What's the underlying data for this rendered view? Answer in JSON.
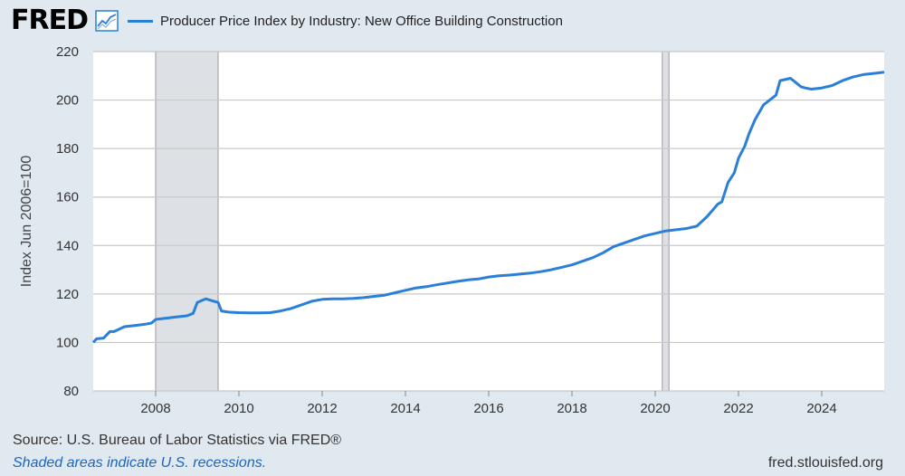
{
  "header": {
    "logo_text": "FRED",
    "logo_icon": "line-graph-icon",
    "legend_label": "Producer Price Index by Industry: New Office Building Construction"
  },
  "colors": {
    "series": "#2a7fd8",
    "recession": "#dde1e6",
    "grid": "#c8c8c8",
    "background": "#e1e9f0",
    "plot": "#ffffff"
  },
  "chart_data": {
    "type": "line",
    "title": "Producer Price Index by Industry: New Office Building Construction",
    "xlabel": "",
    "ylabel": "Index Jun 2006=100",
    "xlim": [
      2006.5,
      2025.5
    ],
    "ylim": [
      80,
      220
    ],
    "yticks": [
      80,
      100,
      120,
      140,
      160,
      180,
      200,
      220
    ],
    "xticks": [
      2008,
      2010,
      2012,
      2014,
      2016,
      2018,
      2020,
      2022,
      2024
    ],
    "xtick_labels": [
      "2008",
      "2010",
      "2012",
      "2014",
      "2016",
      "2018",
      "2020",
      "2022",
      "2024"
    ],
    "grid": true,
    "recessions": [
      {
        "start": 2008.0,
        "end": 2009.5
      },
      {
        "start": 2020.17,
        "end": 2020.33
      }
    ],
    "series": [
      {
        "name": "Producer Price Index by Industry: New Office Building Construction",
        "x": [
          2006.5,
          2006.58,
          2006.75,
          2006.9,
          2007.0,
          2007.25,
          2007.5,
          2007.75,
          2007.9,
          2008.0,
          2008.25,
          2008.5,
          2008.75,
          2008.9,
          2009.0,
          2009.2,
          2009.4,
          2009.5,
          2009.58,
          2009.75,
          2010.0,
          2010.25,
          2010.5,
          2010.75,
          2011.0,
          2011.25,
          2011.5,
          2011.75,
          2012.0,
          2012.25,
          2012.5,
          2012.75,
          2013.0,
          2013.25,
          2013.5,
          2013.75,
          2014.0,
          2014.25,
          2014.5,
          2014.75,
          2015.0,
          2015.25,
          2015.5,
          2015.75,
          2016.0,
          2016.25,
          2016.5,
          2016.75,
          2017.0,
          2017.25,
          2017.5,
          2017.75,
          2018.0,
          2018.25,
          2018.5,
          2018.75,
          2019.0,
          2019.25,
          2019.5,
          2019.75,
          2020.0,
          2020.25,
          2020.5,
          2020.75,
          2021.0,
          2021.25,
          2021.4,
          2021.5,
          2021.6,
          2021.75,
          2021.9,
          2022.0,
          2022.15,
          2022.25,
          2022.4,
          2022.5,
          2022.6,
          2022.75,
          2022.9,
          2023.0,
          2023.25,
          2023.5,
          2023.6,
          2023.75,
          2024.0,
          2024.25,
          2024.5,
          2024.75,
          2025.0,
          2025.25,
          2025.5
        ],
        "values": [
          100.0,
          101.5,
          101.8,
          104.5,
          104.5,
          106.5,
          107.0,
          107.5,
          108.0,
          109.5,
          110.0,
          110.5,
          111.0,
          112.0,
          116.5,
          118.0,
          117.0,
          116.5,
          113.0,
          112.5,
          112.3,
          112.2,
          112.2,
          112.3,
          113.0,
          114.0,
          115.5,
          117.0,
          117.8,
          118.0,
          118.0,
          118.2,
          118.5,
          119.0,
          119.5,
          120.5,
          121.5,
          122.5,
          123.0,
          123.8,
          124.5,
          125.2,
          125.8,
          126.2,
          127.0,
          127.5,
          127.8,
          128.2,
          128.6,
          129.2,
          130.0,
          131.0,
          132.0,
          133.5,
          135.0,
          137.0,
          139.5,
          141.0,
          142.5,
          144.0,
          145.0,
          146.0,
          146.5,
          147.0,
          148.0,
          152.0,
          155.0,
          157.0,
          158.0,
          166.0,
          170.0,
          176.0,
          181.0,
          186.0,
          192.0,
          195.0,
          198.0,
          200.0,
          202.0,
          208.0,
          209.0,
          205.5,
          205.0,
          204.5,
          205.0,
          206.0,
          208.0,
          209.5,
          210.5,
          211.0,
          211.5
        ]
      }
    ]
  },
  "footer": {
    "source": "Source: U.S. Bureau of Labor Statistics via FRED®",
    "recessions_note": "Shaded areas indicate U.S. recessions.",
    "url": "fred.stlouisfed.org"
  }
}
